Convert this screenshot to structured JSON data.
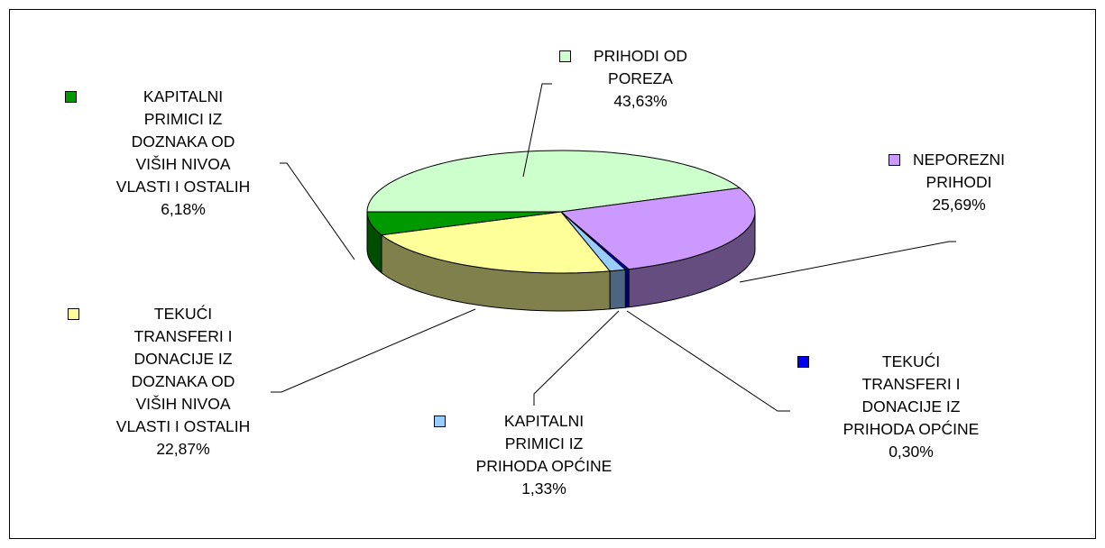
{
  "chart_data": {
    "type": "pie",
    "categories": [
      "PRIHODI OD POREZA",
      "NEPOREZNI PRIHODI",
      "TEKUĆI TRANSFERI I DONACIJE IZ PRIHODA OPĆINE",
      "KAPITALNI PRIMICI IZ PRIHODA OPĆINE",
      "TEKUĆI TRANSFERI I DONACIJE IZ DOZNAKA OD VIŠIH NIVOA VLASTI I OSTALIH",
      "KAPITALNI PRIMICI IZ DOZNAKA OD VIŠIH NIVOA VLASTI I OSTALIH"
    ],
    "values": [
      43.63,
      25.69,
      0.3,
      1.33,
      22.87,
      6.18
    ],
    "value_labels": [
      "43,63%",
      "25,69%",
      "0,30%",
      "1,33%",
      "22,87%",
      "6,18%"
    ],
    "colors": [
      "#ccffcc",
      "#cc99ff",
      "#0000ee",
      "#99ccff",
      "#ffff99",
      "#009900"
    ]
  }
}
